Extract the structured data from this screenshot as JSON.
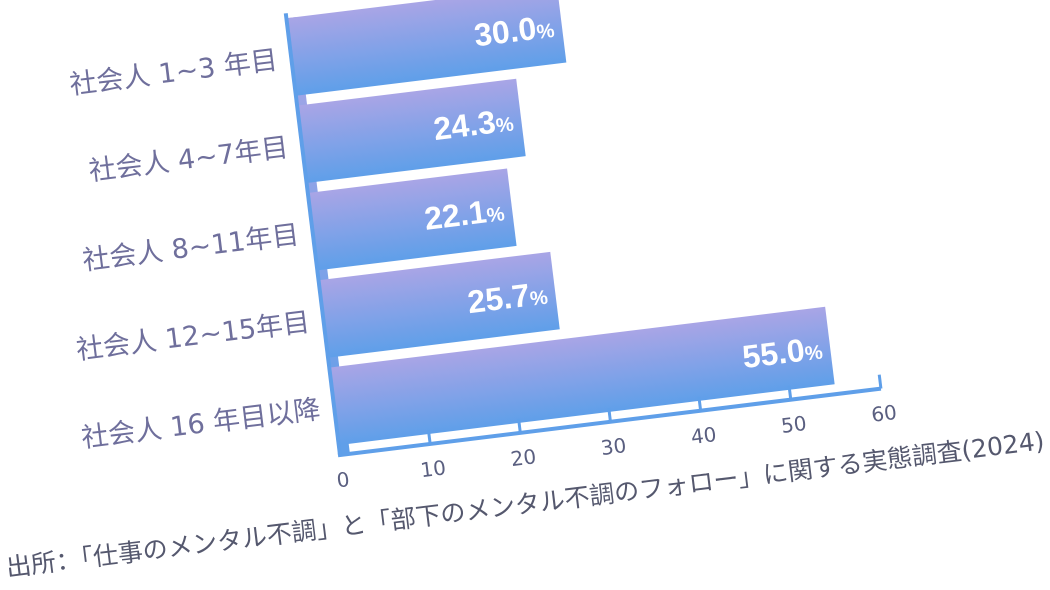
{
  "chart_data": {
    "type": "bar",
    "orientation": "horizontal",
    "categories": [
      "社会人 1~3 年目",
      "社会人 4~7年目",
      "社会人 8~11年目",
      "社会人 12~15年目",
      "社会人 16 年目以降"
    ],
    "values": [
      30.0,
      24.3,
      22.1,
      25.7,
      55.0
    ],
    "value_labels": [
      "30.0",
      "24.3",
      "22.1",
      "25.7",
      "55.0"
    ],
    "value_unit": "%",
    "xlim": [
      0,
      60
    ],
    "xticks": [
      "0",
      "10",
      "20",
      "30",
      "40",
      "50",
      "60"
    ],
    "grid": false,
    "colors": {
      "bar_top": "#a9a5e6",
      "bar_bottom": "#5f9fe9",
      "axis": "#5f9fe9",
      "category_text": "#6f6f9c"
    },
    "source": "出所：「仕事のメンタル不調」と「部下のメンタル不調のフォロー」に関する実態調査(2024)"
  }
}
